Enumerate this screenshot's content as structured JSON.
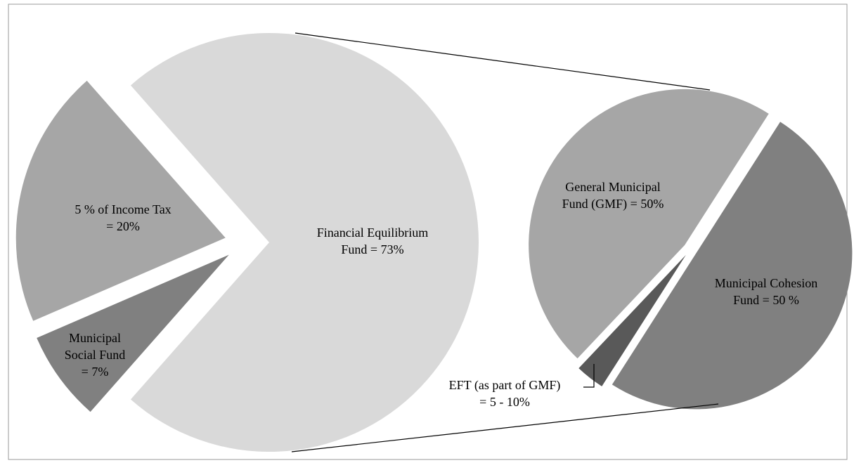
{
  "chart_data": [
    {
      "type": "pie",
      "labels": [
        [
          "Financial Equilibrium",
          "Fund = 73%"
        ],
        [
          "Municipal",
          "Social Fund",
          "= 7%"
        ],
        [
          "5 % of Income Tax",
          "= 20%"
        ]
      ],
      "values": [
        73,
        7,
        20
      ],
      "colors": [
        "#d9d9d9",
        "#808080",
        "#a6a6a6"
      ]
    },
    {
      "type": "pie",
      "labels": [
        [
          "Municipal Cohesion",
          "Fund = 50 %"
        ],
        [
          "EFT (as part of GMF)",
          "= 5 - 10%"
        ],
        [
          "General Municipal",
          "Fund (GMF) = 50%"
        ]
      ],
      "values": [
        50,
        3,
        47
      ],
      "colors": [
        "#808080",
        "#595959",
        "#a6a6a6"
      ]
    }
  ]
}
